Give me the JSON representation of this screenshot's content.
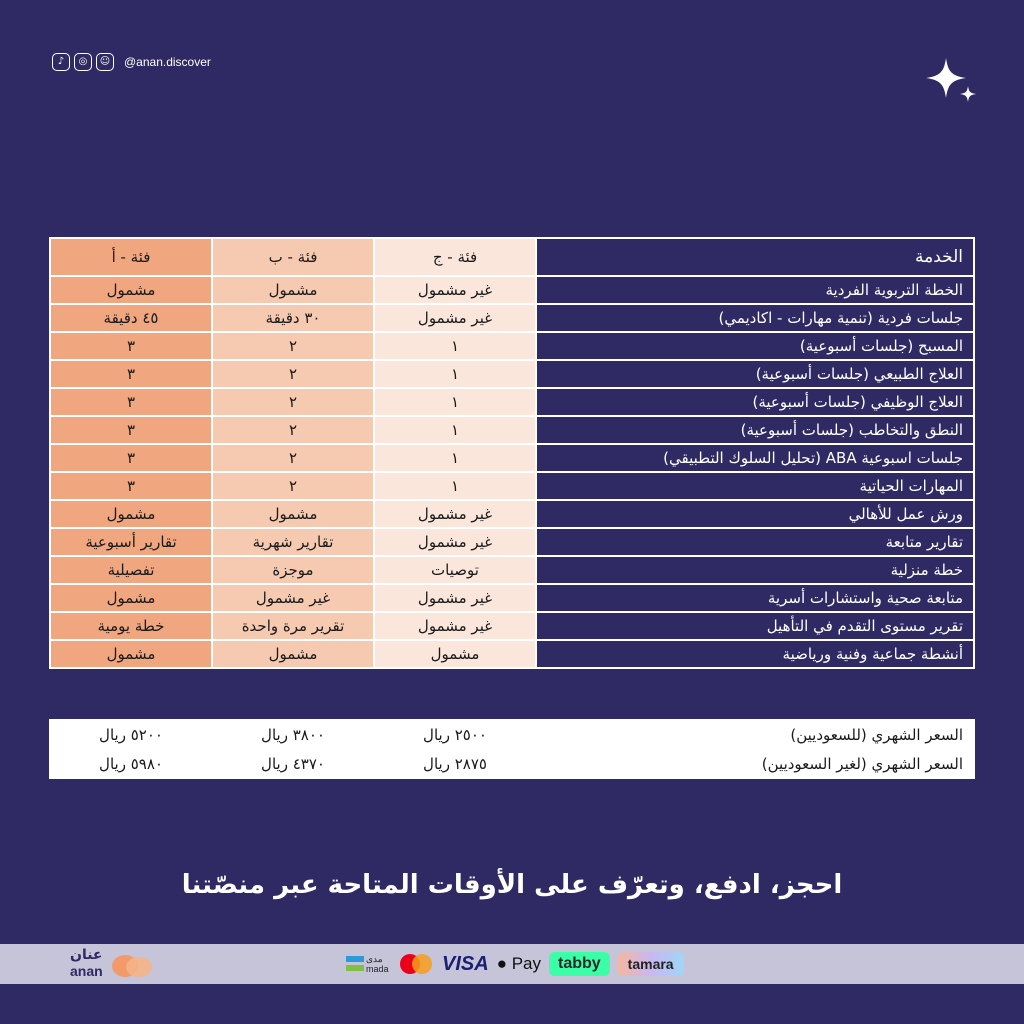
{
  "social": {
    "icons": [
      "tiktok-icon",
      "instagram-icon",
      "snapchat-icon"
    ],
    "handle": "@anan.discover"
  },
  "table": {
    "headers": [
      "الخدمة",
      "فئة - ج",
      "فئة - ب",
      "فئة - أ"
    ],
    "rows": [
      {
        "service": "الخطة التربوية الفردية",
        "c": "غير مشمول",
        "b": "مشمول",
        "a": "مشمول"
      },
      {
        "service": "جلسات فردية (تنمية مهارات - اكاديمي)",
        "c": "غير مشمول",
        "b": "٣٠ دقيقة",
        "a": "٤٥ دقيقة"
      },
      {
        "service": "المسبح (جلسات أسبوعية)",
        "c": "١",
        "b": "٢",
        "a": "٣"
      },
      {
        "service": "العلاج الطبيعي (جلسات أسبوعية)",
        "c": "١",
        "b": "٢",
        "a": "٣"
      },
      {
        "service": "العلاج الوظيفي (جلسات أسبوعية)",
        "c": "١",
        "b": "٢",
        "a": "٣"
      },
      {
        "service": "النطق والتخاطب (جلسات أسبوعية)",
        "c": "١",
        "b": "٢",
        "a": "٣"
      },
      {
        "service": "جلسات اسبوعية ABA (تحليل السلوك التطبيقي)",
        "c": "١",
        "b": "٢",
        "a": "٣"
      },
      {
        "service": "المهارات الحياتية",
        "c": "١",
        "b": "٢",
        "a": "٣"
      },
      {
        "service": "ورش عمل للأهالي",
        "c": "غير مشمول",
        "b": "مشمول",
        "a": "مشمول"
      },
      {
        "service": "تقارير متابعة",
        "c": "غير مشمول",
        "b": "تقارير شهرية",
        "a": "تقارير أسبوعية"
      },
      {
        "service": "خطة منزلية",
        "c": "توصيات",
        "b": "موجزة",
        "a": "تفصيلية"
      },
      {
        "service": "متابعة صحية واستشارات أسرية",
        "c": "غير مشمول",
        "b": "غير مشمول",
        "a": "مشمول"
      },
      {
        "service": "تقرير مستوى التقدم في التأهيل",
        "c": "غير مشمول",
        "b": "تقرير مرة واحدة",
        "a": "خطة يومية"
      },
      {
        "service": "أنشطة جماعية وفنية ورياضية",
        "c": "مشمول",
        "b": "مشمول",
        "a": "مشمول"
      }
    ]
  },
  "prices": [
    {
      "label": "السعر الشهري (للسعوديين)",
      "c": "٢٥٠٠ ريال",
      "b": "٣٨٠٠ ريال",
      "a": "٥٢٠٠ ريال"
    },
    {
      "label": "السعر الشهري (لغير السعوديين)",
      "c": "٢٨٧٥ ريال",
      "b": "٤٣٧٠ ريال",
      "a": "٥٩٨٠ ريال"
    }
  ],
  "tagline": "احجز، ادفع، وتعرّف على الأوقات المتاحة عبر منصّتنا",
  "footer": {
    "brand_ar": "عنان",
    "brand_en": "anan",
    "payments": {
      "mada_ar": "مدى",
      "mada_en": "mada",
      "mastercard_icon": "mastercard-icon",
      "visa": "VISA",
      "applepay": " Pay",
      "tabby": "tabby",
      "tamara": "tamara"
    }
  },
  "colors": {
    "background": "#2f2a63",
    "col_c": "#fbe6dc",
    "col_b": "#f6c9b1",
    "col_a": "#f0a77f"
  }
}
